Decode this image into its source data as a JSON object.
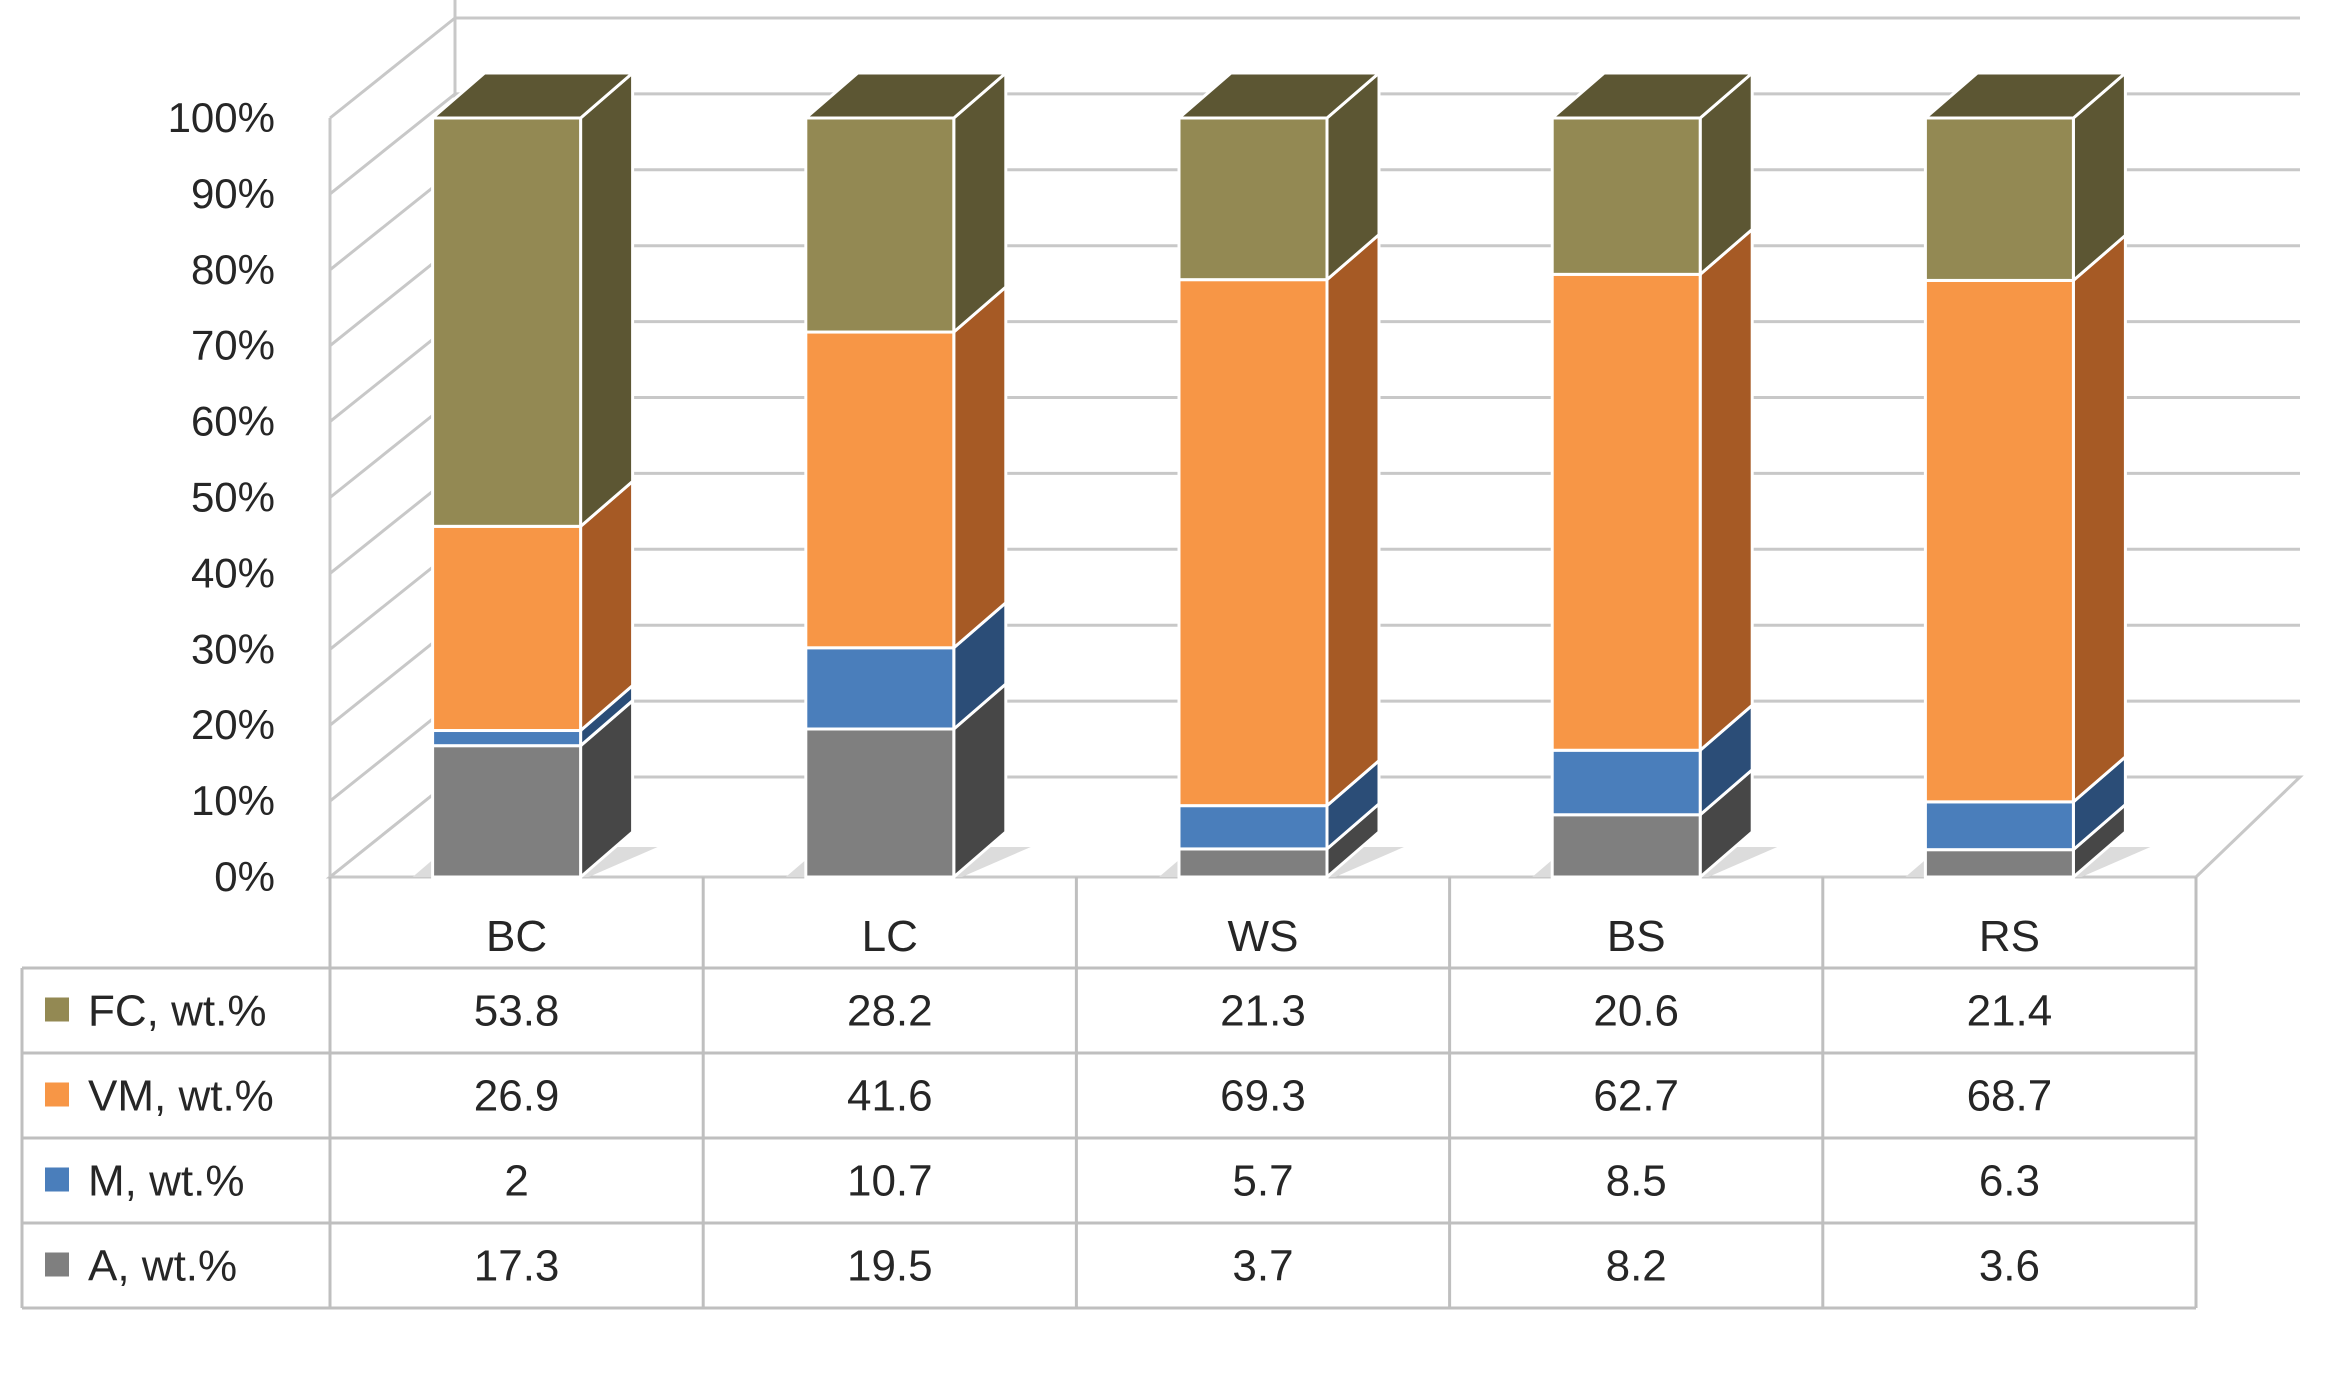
{
  "chart_data": {
    "type": "bar",
    "stacked": true,
    "percent_stacked": true,
    "style": "3d-column-with-data-table",
    "categories": [
      "BC",
      "LC",
      "WS",
      "BS",
      "RS"
    ],
    "y_ticks": [
      "0%",
      "10%",
      "20%",
      "30%",
      "40%",
      "50%",
      "60%",
      "70%",
      "80%",
      "90%",
      "100%"
    ],
    "ylim": [
      0,
      100
    ],
    "series": [
      {
        "name": "A, wt.%",
        "color": "#7f7f7f",
        "side": "#474747",
        "values": [
          17.3,
          19.5,
          3.7,
          8.2,
          3.6
        ]
      },
      {
        "name": "M, wt.%",
        "color": "#4a7ebb",
        "side": "#2b4d77",
        "values": [
          2,
          10.7,
          5.7,
          8.5,
          6.3
        ]
      },
      {
        "name": "VM, wt.%",
        "color": "#f79646",
        "side": "#a65a25",
        "values": [
          26.9,
          41.6,
          69.3,
          62.7,
          68.7
        ]
      },
      {
        "name": "FC, wt.%",
        "color": "#938953",
        "side": "#5c5633",
        "values": [
          53.8,
          28.2,
          21.3,
          20.6,
          21.4
        ]
      }
    ],
    "table_rows": [
      {
        "name": "FC, wt.%",
        "color": "#938953",
        "cells": [
          "53.8",
          "28.2",
          "21.3",
          "20.6",
          "21.4"
        ]
      },
      {
        "name": "VM, wt.%",
        "color": "#f79646",
        "cells": [
          "26.9",
          "41.6",
          "69.3",
          "62.7",
          "68.7"
        ]
      },
      {
        "name": "M, wt.%",
        "color": "#4a7ebb",
        "cells": [
          "2",
          "10.7",
          "5.7",
          "8.5",
          "6.3"
        ]
      },
      {
        "name": "A, wt.%",
        "color": "#7f7f7f",
        "cells": [
          "17.3",
          "19.5",
          "3.7",
          "8.2",
          "3.6"
        ]
      }
    ],
    "grid": true,
    "legend": "data-table-left"
  }
}
